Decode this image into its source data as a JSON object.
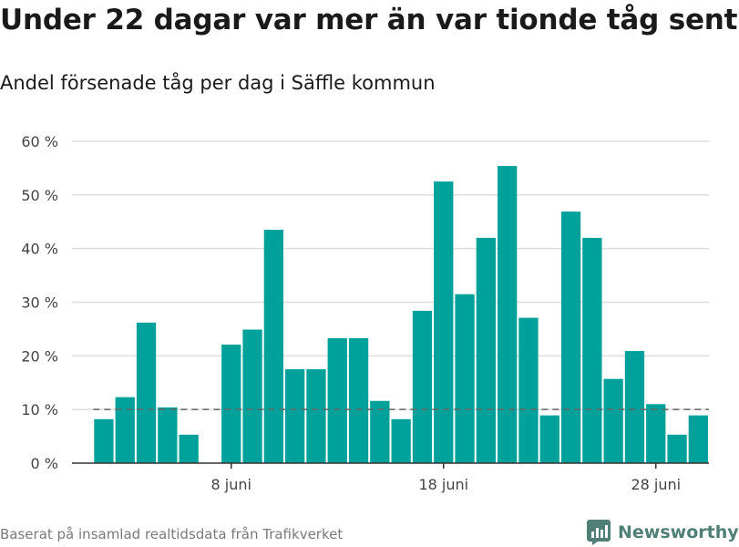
{
  "title": "Under 22 dagar var mer än var tionde tåg sent",
  "subtitle": "Andel försenade tåg per dag i Säffle kommun",
  "footer": "Baserat på insamlad realtidsdata från Trafikverket",
  "logo": {
    "text": "Newsworthy",
    "icon": "newsworthy-logo-icon"
  },
  "colors": {
    "bar": "#00a19a",
    "grid": "#dddddd",
    "axis": "#333333",
    "reference": "#666666",
    "logo": "#4f7f76"
  },
  "chart_data": {
    "type": "bar",
    "ylabel": "",
    "xlabel": "",
    "ylim": [
      0,
      60
    ],
    "yticks": [
      0,
      10,
      20,
      30,
      40,
      50,
      60
    ],
    "ytick_labels": [
      "0 %",
      "10 %",
      "20 %",
      "30 %",
      "40 %",
      "50 %",
      "60 %"
    ],
    "xlim": [
      0.5,
      30.5
    ],
    "xticks": [
      {
        "day": 8,
        "label": "8 juni"
      },
      {
        "day": 18,
        "label": "18 juni"
      },
      {
        "day": 28,
        "label": "28 juni"
      }
    ],
    "grid": true,
    "reference_line": 10,
    "series": [
      {
        "days": [
          2,
          3,
          4,
          5,
          6,
          8,
          9,
          10,
          11,
          12,
          13,
          14,
          15,
          16,
          17,
          18,
          19,
          20,
          21,
          22,
          23,
          24,
          25,
          26,
          27,
          28,
          29,
          30
        ],
        "values": [
          8.2,
          12.3,
          26.2,
          10.4,
          5.3,
          22.1,
          24.9,
          43.5,
          17.5,
          17.5,
          23.3,
          23.3,
          11.6,
          8.2,
          28.4,
          52.5,
          31.5,
          42.0,
          55.4,
          27.1,
          8.9,
          46.9,
          42.0,
          15.7,
          20.9,
          11.0,
          5.3,
          8.9
        ]
      }
    ]
  }
}
